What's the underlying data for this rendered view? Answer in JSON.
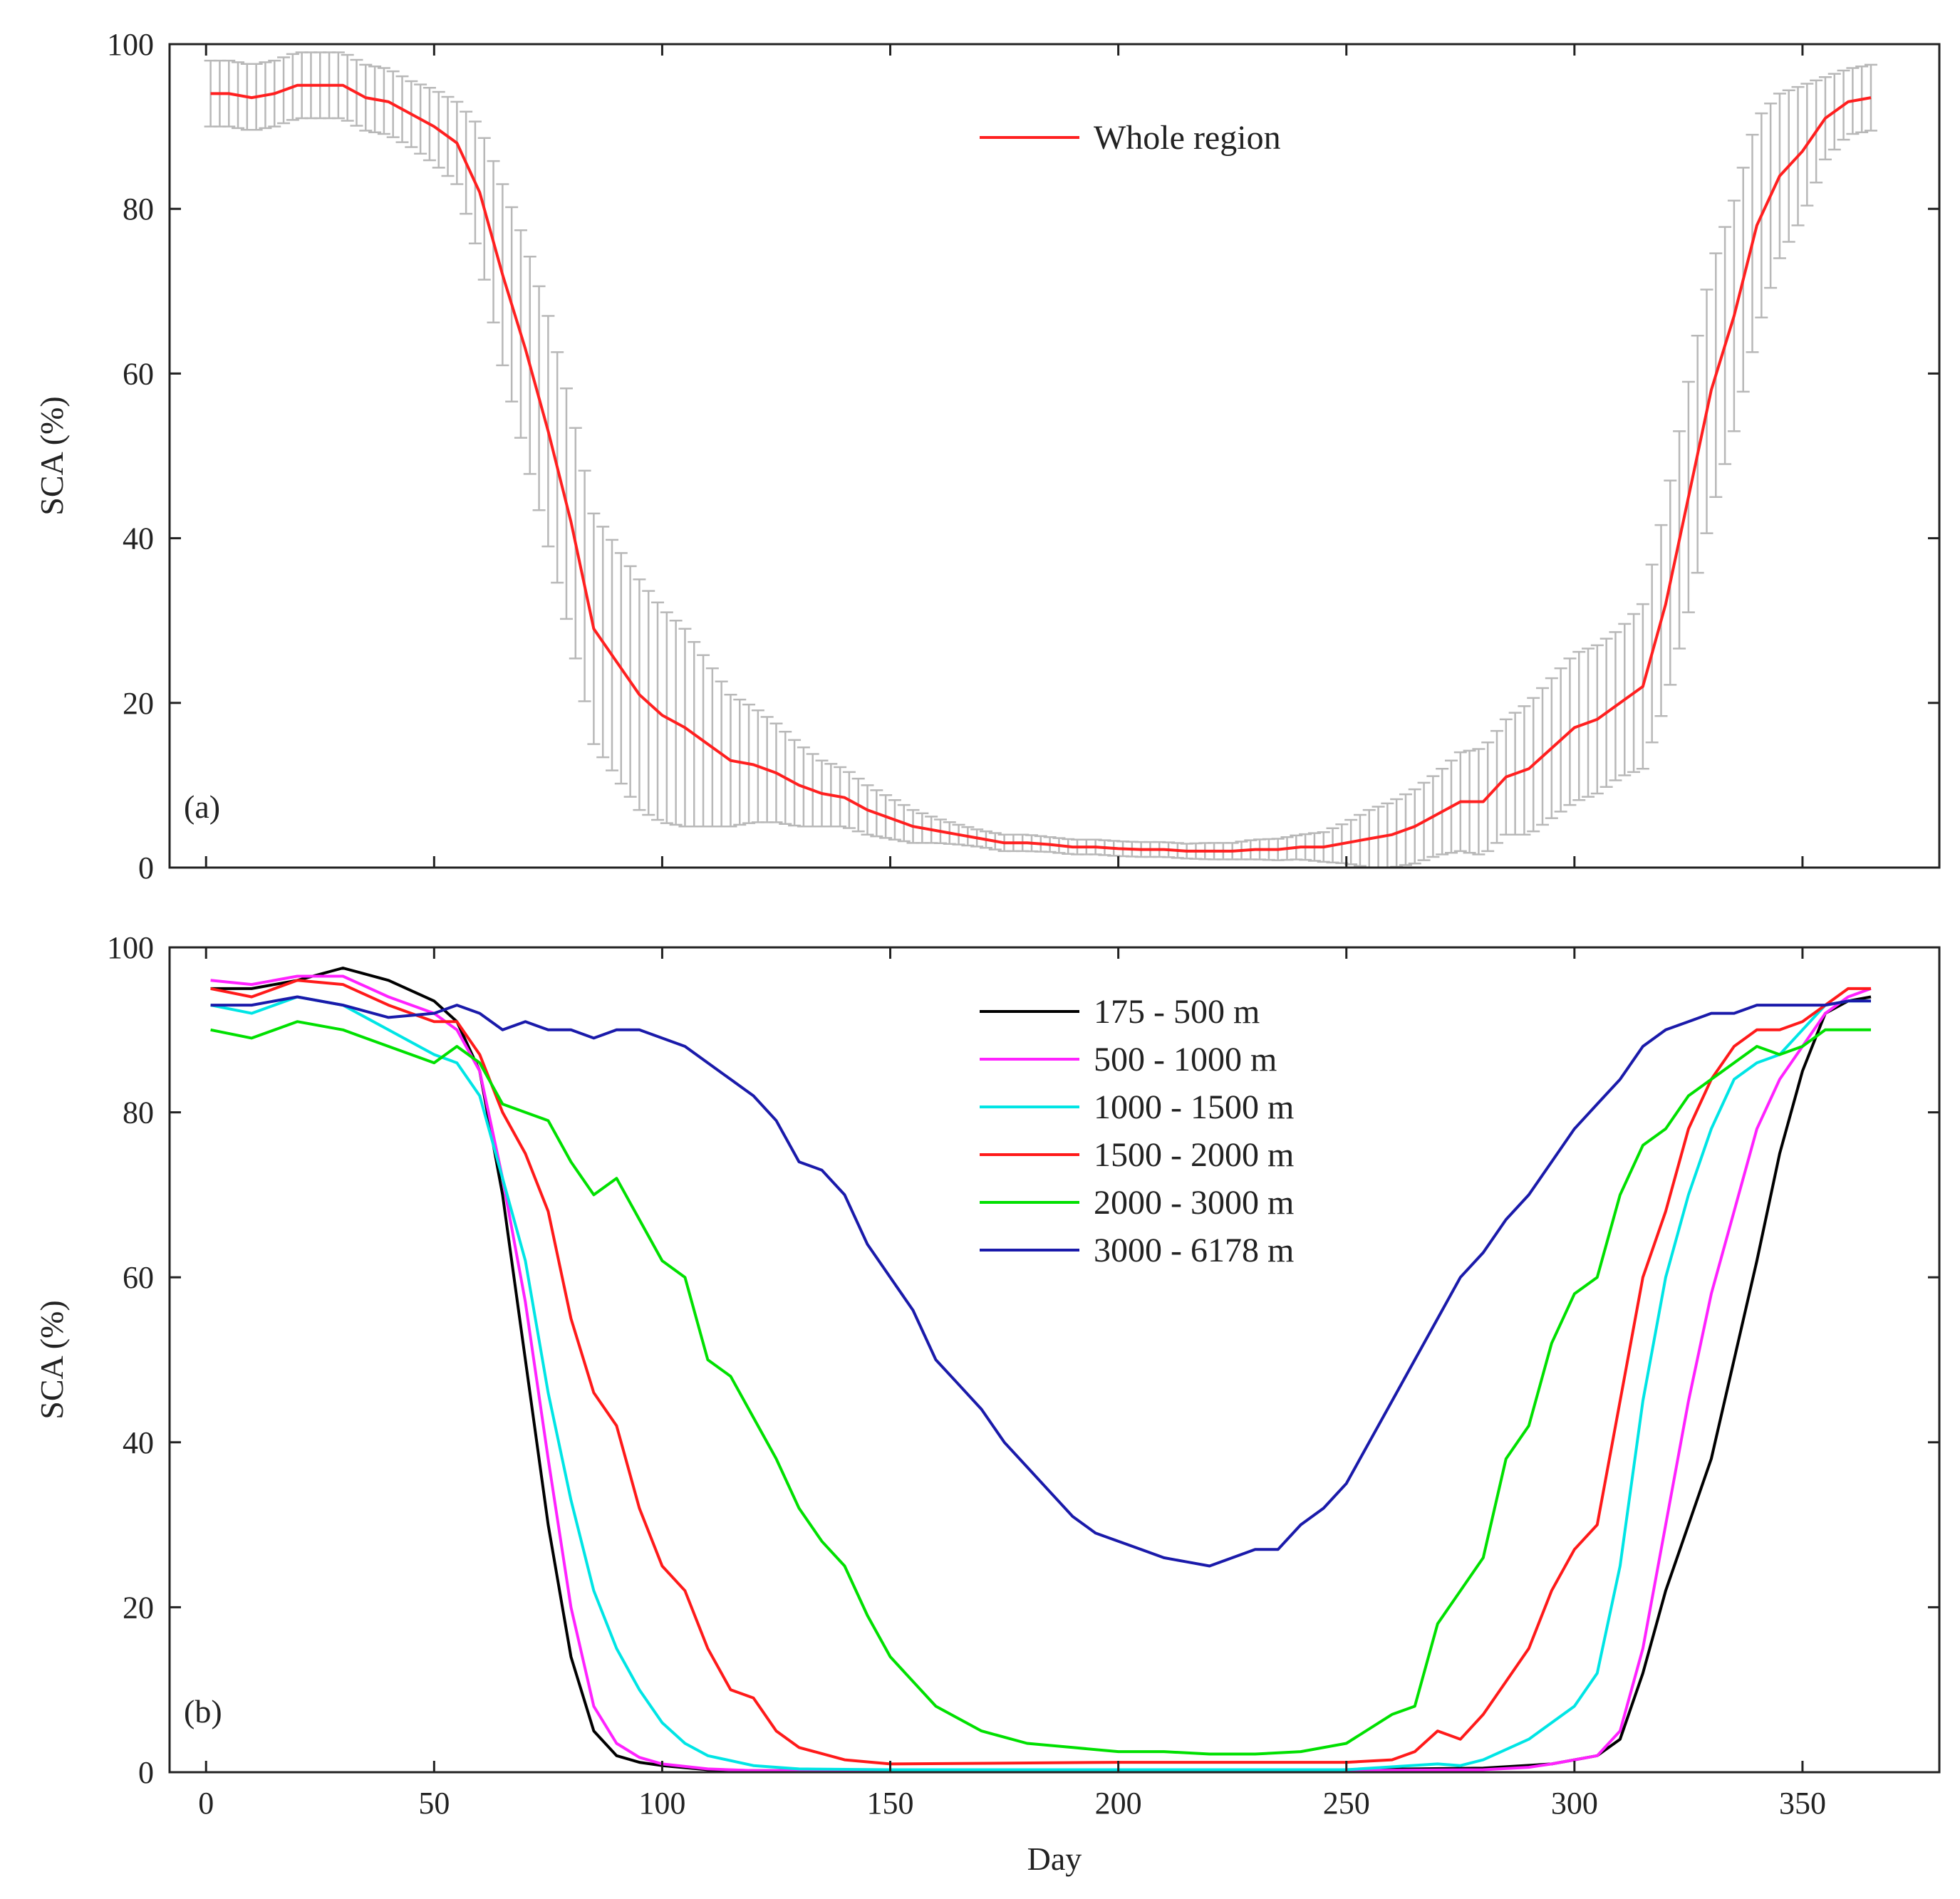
{
  "figure": {
    "xlabel": "Day"
  },
  "chart_data": [
    {
      "type": "line",
      "panel_label": "(a)",
      "ylabel": "SCA (%)",
      "xlabel": "",
      "xlim": [
        -8,
        380
      ],
      "ylim": [
        0,
        100
      ],
      "xticks": [
        0,
        50,
        100,
        150,
        200,
        250,
        300,
        350
      ],
      "yticks": [
        0,
        20,
        40,
        60,
        80,
        100
      ],
      "grid": false,
      "legend_position": "top-center",
      "series": [
        {
          "name": "Whole region",
          "color": "#ff2020",
          "errorbar_color": "#b8b8b8",
          "x": [
            1,
            5,
            10,
            15,
            20,
            25,
            30,
            35,
            40,
            45,
            50,
            55,
            60,
            65,
            70,
            75,
            80,
            85,
            90,
            95,
            100,
            105,
            110,
            115,
            120,
            125,
            130,
            135,
            140,
            145,
            150,
            155,
            160,
            165,
            170,
            175,
            180,
            185,
            190,
            195,
            200,
            205,
            210,
            215,
            220,
            225,
            230,
            235,
            240,
            245,
            250,
            255,
            260,
            265,
            270,
            275,
            280,
            285,
            290,
            295,
            300,
            305,
            310,
            315,
            320,
            325,
            330,
            335,
            340,
            345,
            350,
            355,
            360,
            365
          ],
          "y": [
            94,
            94,
            93.5,
            94,
            95,
            95,
            95,
            93.5,
            93,
            91.5,
            90,
            88,
            82,
            72,
            63,
            53,
            42,
            29,
            25,
            21,
            18.5,
            17,
            15,
            13,
            12.5,
            11.5,
            10,
            9,
            8.5,
            7,
            6,
            5,
            4.5,
            4,
            3.5,
            3,
            3,
            2.8,
            2.5,
            2.5,
            2.3,
            2.2,
            2.2,
            2,
            2,
            2,
            2.2,
            2.2,
            2.5,
            2.5,
            3,
            3.5,
            4,
            5,
            6.5,
            8,
            8,
            11,
            12,
            14.5,
            17,
            18,
            20,
            22,
            32,
            45,
            58,
            67,
            78,
            84,
            87,
            91,
            93,
            93.5
          ],
          "err": [
            4,
            4,
            4,
            4,
            4,
            4,
            4,
            4,
            4,
            4,
            4.5,
            5,
            8,
            11,
            13,
            14,
            14,
            14,
            14,
            14,
            13,
            12,
            10,
            8,
            7,
            6,
            5,
            4,
            3.5,
            3,
            2.5,
            2,
            1.5,
            1.2,
            1,
            1,
            1,
            0.9,
            0.9,
            0.9,
            0.9,
            0.9,
            0.9,
            0.9,
            1,
            1,
            1.2,
            1.3,
            1.5,
            1.8,
            2.5,
            3.5,
            4,
            4.5,
            5,
            6,
            6.5,
            7,
            8,
            8.5,
            9,
            9,
            9,
            10,
            12,
            14,
            15,
            14,
            13,
            10,
            8,
            5,
            4,
            4
          ]
        }
      ]
    },
    {
      "type": "line",
      "panel_label": "(b)",
      "ylabel": "SCA (%)",
      "xlabel": "Day",
      "xlim": [
        -8,
        380
      ],
      "ylim": [
        0,
        100
      ],
      "xticks": [
        0,
        50,
        100,
        150,
        200,
        250,
        300,
        350
      ],
      "yticks": [
        0,
        20,
        40,
        60,
        80,
        100
      ],
      "grid": false,
      "legend_position": "top-center",
      "series": [
        {
          "name": "175 - 500 m",
          "color": "#000000",
          "x": [
            1,
            10,
            20,
            30,
            40,
            50,
            55,
            60,
            65,
            70,
            75,
            80,
            85,
            90,
            95,
            100,
            110,
            120,
            150,
            200,
            250,
            280,
            295,
            300,
            305,
            310,
            315,
            320,
            325,
            330,
            335,
            340,
            345,
            350,
            355,
            360,
            365
          ],
          "y": [
            95,
            95,
            96,
            97.5,
            96,
            93.5,
            91,
            85,
            70,
            50,
            30,
            14,
            5,
            2,
            1.2,
            0.8,
            0.3,
            0.2,
            0.2,
            0.2,
            0.3,
            0.5,
            1,
            1.5,
            2,
            4,
            12,
            22,
            30,
            38,
            50,
            62,
            75,
            85,
            92,
            93.5,
            94
          ]
        },
        {
          "name": "500 - 1000 m",
          "color": "#ff22ff",
          "x": [
            1,
            10,
            20,
            30,
            40,
            50,
            55,
            60,
            65,
            70,
            75,
            80,
            85,
            90,
            95,
            100,
            110,
            120,
            150,
            200,
            250,
            280,
            290,
            295,
            300,
            305,
            310,
            315,
            320,
            325,
            330,
            335,
            340,
            345,
            350,
            355,
            360,
            365
          ],
          "y": [
            96,
            95.5,
            96.5,
            96.5,
            94,
            92,
            90,
            85,
            72,
            57,
            38,
            20,
            8,
            3.5,
            1.8,
            1,
            0.4,
            0.2,
            0.2,
            0.2,
            0.2,
            0.3,
            0.6,
            1,
            1.5,
            2,
            5,
            15,
            30,
            45,
            58,
            68,
            78,
            84,
            88,
            92,
            94,
            95
          ]
        },
        {
          "name": "1000 - 1500 m",
          "color": "#00e5e5",
          "x": [
            1,
            10,
            20,
            30,
            40,
            50,
            55,
            60,
            65,
            70,
            75,
            80,
            85,
            90,
            95,
            100,
            105,
            110,
            120,
            130,
            150,
            200,
            250,
            270,
            275,
            280,
            290,
            300,
            305,
            310,
            315,
            320,
            325,
            330,
            335,
            340,
            345,
            350,
            355,
            360,
            365
          ],
          "y": [
            93,
            92,
            94,
            93,
            90,
            87,
            86,
            82,
            72,
            62,
            46,
            33,
            22,
            15,
            10,
            6,
            3.5,
            2,
            0.8,
            0.4,
            0.3,
            0.3,
            0.3,
            1,
            0.8,
            1.5,
            4,
            8,
            12,
            25,
            45,
            60,
            70,
            78,
            84,
            86,
            87,
            90,
            93,
            93.5,
            93.5
          ]
        },
        {
          "name": "1500 - 2000 m",
          "color": "#ff1a1a",
          "x": [
            1,
            10,
            20,
            30,
            40,
            50,
            55,
            60,
            65,
            70,
            75,
            80,
            85,
            90,
            95,
            100,
            105,
            110,
            115,
            120,
            125,
            130,
            140,
            150,
            200,
            250,
            260,
            265,
            270,
            275,
            280,
            285,
            290,
            295,
            300,
            305,
            310,
            315,
            320,
            325,
            330,
            335,
            340,
            345,
            350,
            355,
            360,
            365
          ],
          "y": [
            95,
            94,
            96,
            95.5,
            93,
            91,
            91,
            87,
            80,
            75,
            68,
            55,
            46,
            42,
            32,
            25,
            22,
            15,
            10,
            9,
            5,
            3,
            1.5,
            1,
            1.2,
            1.2,
            1.5,
            2.5,
            5,
            4,
            7,
            11,
            15,
            22,
            27,
            30,
            45,
            60,
            68,
            78,
            84,
            88,
            90,
            90,
            91,
            93,
            95,
            95
          ]
        },
        {
          "name": "2000 - 3000 m",
          "color": "#00e000",
          "x": [
            1,
            10,
            20,
            30,
            40,
            50,
            55,
            60,
            65,
            70,
            75,
            80,
            85,
            90,
            95,
            100,
            105,
            110,
            115,
            120,
            125,
            130,
            135,
            140,
            145,
            150,
            160,
            170,
            180,
            190,
            200,
            210,
            220,
            230,
            240,
            250,
            260,
            265,
            270,
            275,
            280,
            285,
            290,
            295,
            300,
            305,
            310,
            315,
            320,
            325,
            330,
            335,
            340,
            345,
            350,
            355,
            360,
            365
          ],
          "y": [
            90,
            89,
            91,
            90,
            88,
            86,
            88,
            86,
            81,
            80,
            79,
            74,
            70,
            72,
            67,
            62,
            60,
            50,
            48,
            43,
            38,
            32,
            28,
            25,
            19,
            14,
            8,
            5,
            3.5,
            3,
            2.5,
            2.5,
            2.2,
            2.2,
            2.5,
            3.5,
            7,
            8,
            18,
            22,
            26,
            38,
            42,
            52,
            58,
            60,
            70,
            76,
            78,
            82,
            84,
            86,
            88,
            87,
            88,
            90,
            90,
            90
          ]
        },
        {
          "name": "3000 - 6178 m",
          "color": "#1a1aaa",
          "x": [
            1,
            10,
            20,
            30,
            40,
            50,
            55,
            60,
            65,
            70,
            75,
            80,
            85,
            90,
            95,
            100,
            105,
            110,
            115,
            120,
            125,
            130,
            135,
            140,
            145,
            150,
            155,
            160,
            165,
            170,
            175,
            180,
            185,
            190,
            195,
            200,
            205,
            210,
            215,
            220,
            225,
            230,
            235,
            240,
            245,
            250,
            255,
            260,
            265,
            270,
            275,
            280,
            285,
            290,
            295,
            300,
            305,
            310,
            315,
            320,
            325,
            330,
            335,
            340,
            345,
            350,
            355,
            360,
            365
          ],
          "y": [
            93,
            93,
            94,
            93,
            91.5,
            92,
            93,
            92,
            90,
            91,
            90,
            90,
            89,
            90,
            90,
            89,
            88,
            86,
            84,
            82,
            79,
            74,
            73,
            70,
            64,
            60,
            56,
            50,
            47,
            44,
            40,
            37,
            34,
            31,
            29,
            28,
            27,
            26,
            25.5,
            25,
            26,
            27,
            27,
            30,
            32,
            35,
            40,
            45,
            50,
            55,
            60,
            63,
            67,
            70,
            74,
            78,
            81,
            84,
            88,
            90,
            91,
            92,
            92,
            93,
            93,
            93,
            93,
            93.5,
            93.5
          ]
        }
      ]
    }
  ]
}
